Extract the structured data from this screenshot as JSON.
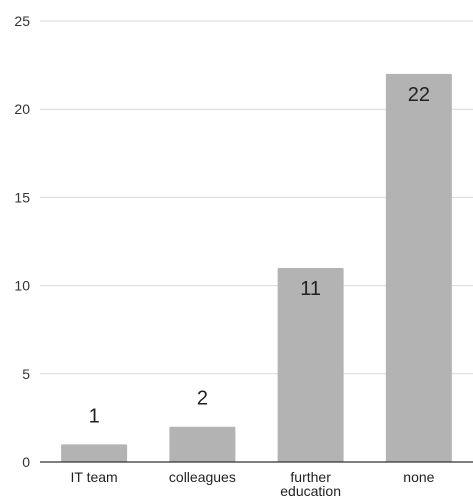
{
  "chart_data": {
    "type": "bar",
    "categories": [
      [
        "IT team"
      ],
      [
        "colleagues"
      ],
      [
        "further",
        "education"
      ],
      [
        "none"
      ]
    ],
    "values": [
      1,
      2,
      11,
      22
    ],
    "data_labels": [
      "1",
      "2",
      "11",
      "22"
    ],
    "ylim": [
      0,
      25
    ],
    "yticks": [
      0,
      5,
      10,
      15,
      20,
      25
    ],
    "ytick_labels": [
      "0",
      "5",
      "10",
      "15",
      "20",
      "25"
    ],
    "grid": true,
    "bar_color": "#b3b3b3",
    "grid_color": "#d9d9d9",
    "axis_color": "#333333"
  }
}
